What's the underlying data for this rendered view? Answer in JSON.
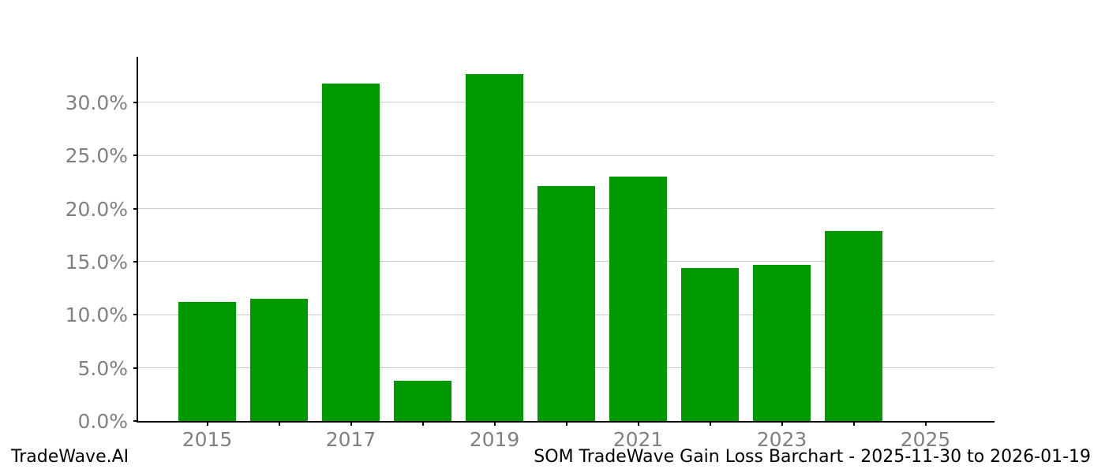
{
  "footer": {
    "brand": "TradeWave.AI",
    "title": "SOM TradeWave Gain Loss Barchart - 2025-11-30 to 2026-01-19"
  },
  "chart_data": {
    "type": "bar",
    "title": "SOM TradeWave Gain Loss Barchart - 2025-11-30 to 2026-01-19",
    "xlabel": "",
    "ylabel": "",
    "categories": [
      "2015",
      "2016",
      "2017",
      "2018",
      "2019",
      "2020",
      "2021",
      "2022",
      "2023",
      "2024",
      "2025"
    ],
    "values": [
      11.2,
      11.5,
      31.8,
      3.8,
      32.7,
      22.1,
      23.0,
      14.4,
      14.7,
      17.9,
      0.0
    ],
    "bar_color": "#009a00",
    "grid": true,
    "legend_position": "none",
    "ylim": [
      0,
      34.3
    ],
    "yticks": [
      {
        "value": 0,
        "label": "0.0%"
      },
      {
        "value": 5,
        "label": "5.0%"
      },
      {
        "value": 10,
        "label": "10.0%"
      },
      {
        "value": 15,
        "label": "15.0%"
      },
      {
        "value": 20,
        "label": "20.0%"
      },
      {
        "value": 25,
        "label": "25.0%"
      },
      {
        "value": 30,
        "label": "30.0%"
      }
    ],
    "xtick_labels": [
      "2015",
      "2017",
      "2019",
      "2021",
      "2023",
      "2025"
    ],
    "colors": {
      "grid": "#cccccc",
      "axis": "#000000",
      "tick_label": "#808080",
      "text": "#000000",
      "background": "#ffffff"
    }
  }
}
